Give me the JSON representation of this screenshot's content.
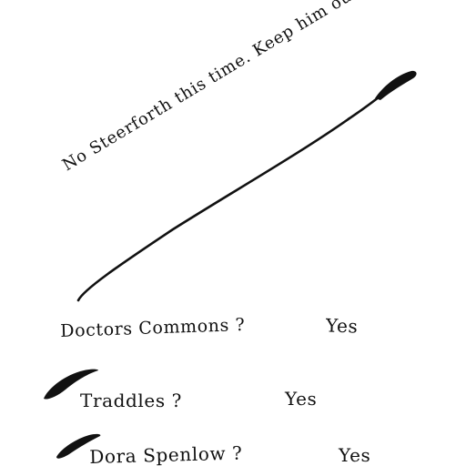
{
  "note": {
    "text": "No Steerforth this time.   Keep him out."
  },
  "checklist": [
    {
      "question": "Doctors  Commons ?",
      "answer": "Yes"
    },
    {
      "question": "Traddles  ?",
      "answer": "Yes"
    },
    {
      "question": "Dora  Spenlow  ?",
      "answer": "Yes"
    }
  ],
  "colors": {
    "ink": "#111111",
    "paper": "#ffffff"
  }
}
